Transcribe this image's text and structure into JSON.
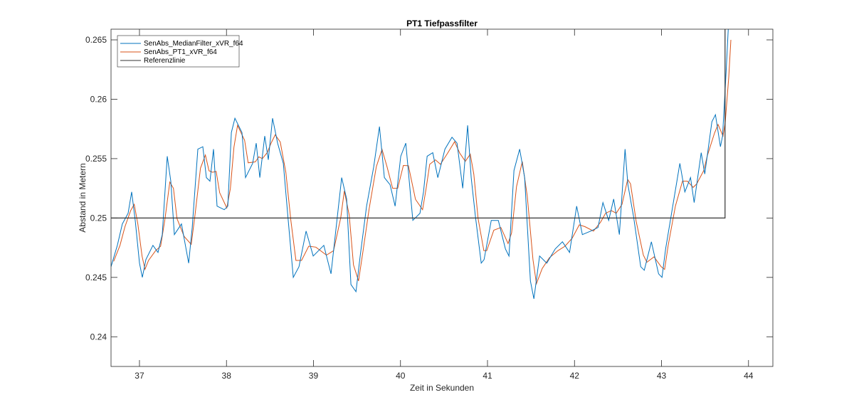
{
  "chart_data": {
    "type": "line",
    "title": "PT1 Tiefpassfilter",
    "xlabel": "Zeit in Sekunden",
    "ylabel": "Abstand in Metern",
    "xlim": [
      36.673,
      44.28
    ],
    "ylim": [
      0.2375,
      0.2659
    ],
    "xticks": [
      37,
      38,
      39,
      40,
      41,
      42,
      43,
      44
    ],
    "xtick_labels": [
      "37",
      "38",
      "39",
      "40",
      "41",
      "42",
      "43",
      "44"
    ],
    "yticks": [
      0.24,
      0.245,
      0.25,
      0.255,
      0.26,
      0.265
    ],
    "ytick_labels": [
      "0.24",
      "0.245",
      "0.25",
      "0.255",
      "0.26",
      "0.265"
    ],
    "grid": false,
    "legend_position": "top-left",
    "series": [
      {
        "name": "SenAbs_MedianFilter_xVR_f64",
        "color": "#0072BD",
        "x": [
          36.673,
          36.746,
          36.803,
          36.869,
          36.91,
          36.951,
          37.0,
          37.033,
          37.074,
          37.155,
          37.213,
          37.262,
          37.319,
          37.36,
          37.401,
          37.483,
          37.565,
          37.606,
          37.671,
          37.728,
          37.769,
          37.81,
          37.851,
          37.892,
          37.974,
          38.015,
          38.056,
          38.097,
          38.178,
          38.219,
          38.301,
          38.342,
          38.383,
          38.44,
          38.481,
          38.53,
          38.588,
          38.653,
          38.71,
          38.768,
          38.833,
          38.915,
          38.997,
          39.119,
          39.201,
          39.283,
          39.324,
          39.381,
          39.43,
          39.488,
          39.537,
          39.61,
          39.692,
          39.758,
          39.815,
          39.88,
          39.938,
          40.003,
          40.061,
          40.142,
          40.224,
          40.265,
          40.306,
          40.371,
          40.429,
          40.511,
          40.592,
          40.65,
          40.715,
          40.772,
          40.813,
          40.862,
          40.928,
          40.961,
          41.043,
          41.124,
          41.206,
          41.247,
          41.304,
          41.37,
          41.427,
          41.493,
          41.533,
          41.599,
          41.681,
          41.779,
          41.861,
          41.943,
          42.025,
          42.09,
          42.188,
          42.27,
          42.327,
          42.393,
          42.45,
          42.516,
          42.581,
          42.614,
          42.679,
          42.761,
          42.802,
          42.884,
          42.966,
          43.006,
          43.047,
          43.129,
          43.211,
          43.268,
          43.334,
          43.375,
          43.456,
          43.497,
          43.579,
          43.62,
          43.677,
          43.702,
          43.743,
          43.767
        ],
        "y": [
          0.2459,
          0.2477,
          0.2495,
          0.2504,
          0.2522,
          0.2498,
          0.2462,
          0.245,
          0.2465,
          0.2477,
          0.2471,
          0.2486,
          0.2552,
          0.2531,
          0.2486,
          0.2495,
          0.2462,
          0.2492,
          0.2558,
          0.256,
          0.2534,
          0.2531,
          0.2558,
          0.251,
          0.2507,
          0.251,
          0.2572,
          0.2584,
          0.2572,
          0.2534,
          0.2546,
          0.2563,
          0.2534,
          0.2569,
          0.2549,
          0.2584,
          0.2563,
          0.2546,
          0.2498,
          0.245,
          0.2459,
          0.2489,
          0.2468,
          0.2477,
          0.2453,
          0.2507,
          0.2534,
          0.2516,
          0.2444,
          0.2438,
          0.2468,
          0.251,
          0.2543,
          0.2577,
          0.2534,
          0.2528,
          0.251,
          0.2552,
          0.2563,
          0.2498,
          0.2504,
          0.2522,
          0.2552,
          0.2555,
          0.2534,
          0.2558,
          0.2568,
          0.2563,
          0.2525,
          0.2578,
          0.2534,
          0.2501,
          0.2462,
          0.2465,
          0.2498,
          0.2498,
          0.2474,
          0.2468,
          0.254,
          0.2558,
          0.2534,
          0.2447,
          0.2432,
          0.2468,
          0.2462,
          0.2474,
          0.248,
          0.2471,
          0.251,
          0.2486,
          0.2489,
          0.2492,
          0.2513,
          0.2498,
          0.2516,
          0.2486,
          0.2558,
          0.2528,
          0.2501,
          0.2459,
          0.2456,
          0.248,
          0.2453,
          0.245,
          0.2474,
          0.251,
          0.2546,
          0.2522,
          0.2534,
          0.2513,
          0.2555,
          0.2537,
          0.2581,
          0.2587,
          0.256,
          0.2569,
          0.2623,
          0.2659
        ]
      },
      {
        "name": "SenAbs_PT1_xVR_f64",
        "color": "#D95319",
        "lag_s": 0.03
      },
      {
        "name": "Referenzlinie",
        "color": "#333333",
        "x": [
          36.673,
          43.73,
          43.73
        ],
        "y": [
          0.25,
          0.25,
          0.2659
        ]
      }
    ]
  }
}
